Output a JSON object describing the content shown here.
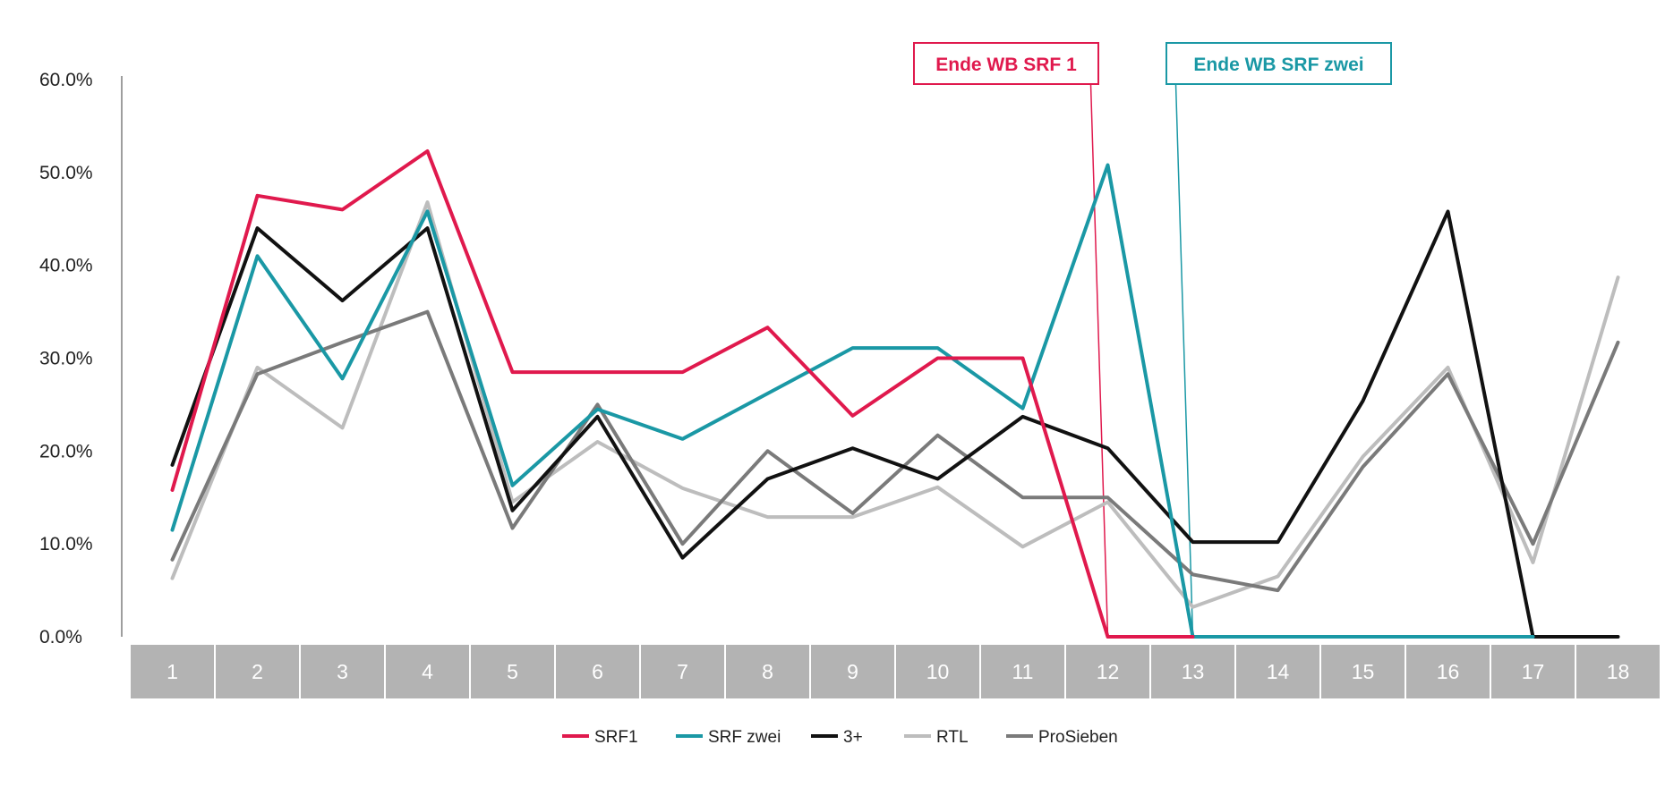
{
  "chart_data": {
    "type": "line",
    "categories": [
      "1",
      "2",
      "3",
      "4",
      "5",
      "6",
      "7",
      "8",
      "9",
      "10",
      "11",
      "12",
      "13",
      "14",
      "15",
      "16",
      "17",
      "18"
    ],
    "ylim": [
      0,
      60
    ],
    "yticks": [
      "0.0%",
      "10.0%",
      "20.0%",
      "30.0%",
      "40.0%",
      "50.0%",
      "60.0%"
    ],
    "grid": false,
    "legend_position": "bottom",
    "series": [
      {
        "name": "SRF1",
        "color": "#e0194d",
        "values": [
          15.8,
          47.5,
          46,
          52.3,
          28.5,
          28.5,
          28.5,
          33.3,
          23.8,
          30,
          30,
          0,
          0,
          null,
          null,
          null,
          null,
          null
        ]
      },
      {
        "name": "SRF zwei",
        "color": "#1a98a5",
        "values": [
          11.5,
          41,
          27.8,
          45.8,
          16.3,
          24.5,
          21.3,
          26.2,
          31.1,
          31.1,
          24.6,
          50.8,
          0,
          0,
          0,
          0,
          0,
          null
        ]
      },
      {
        "name": "3+",
        "color": "#111111",
        "values": [
          18.5,
          44,
          36.2,
          44,
          13.6,
          23.7,
          8.5,
          17,
          20.3,
          17,
          23.7,
          20.3,
          10.2,
          10.2,
          25.4,
          45.8,
          0,
          0
        ]
      },
      {
        "name": "RTL",
        "color": "#bdbdbd",
        "values": [
          6.3,
          29,
          22.5,
          46.8,
          14.5,
          21,
          16,
          12.9,
          12.9,
          16.1,
          9.7,
          14.5,
          3.2,
          6.5,
          19.4,
          29,
          8,
          38.7
        ]
      },
      {
        "name": "ProSieben",
        "color": "#7a7a7a",
        "values": [
          8.3,
          28.3,
          31.7,
          35,
          11.7,
          25,
          10,
          20,
          13.3,
          21.7,
          15,
          15,
          6.7,
          5,
          18.3,
          28.3,
          10,
          31.7
        ]
      }
    ],
    "annotations": [
      {
        "text": "Ende WB SRF 1",
        "color": "#e0194d",
        "x_from": "11.8",
        "x_to": "12"
      },
      {
        "text": "Ende WB SRF zwei",
        "color": "#1a98a5",
        "x_from": "12.8",
        "x_to": "13"
      }
    ]
  }
}
